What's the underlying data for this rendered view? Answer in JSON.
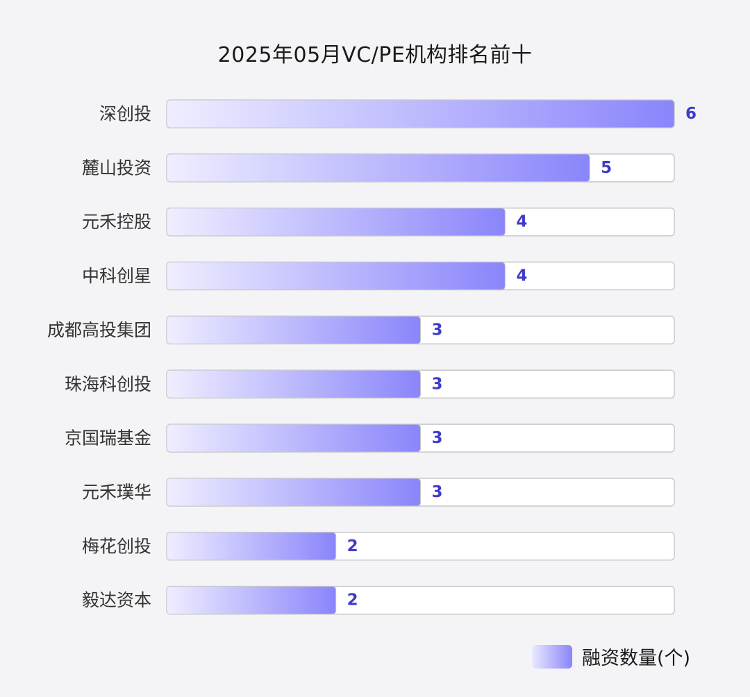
{
  "chart_data": {
    "type": "bar",
    "orientation": "horizontal",
    "title": "2025年05月VC/PE机构排名前十",
    "categories": [
      "深创投",
      "麓山投资",
      "元禾控股",
      "中科创星",
      "成都高投集团",
      "珠海科创投",
      "京国瑞基金",
      "元禾璞华",
      "梅花创投",
      "毅达资本"
    ],
    "series": [
      {
        "name": "融资数量(个)",
        "values": [
          6,
          5,
          4,
          4,
          3,
          3,
          3,
          3,
          2,
          2
        ]
      }
    ],
    "xlim": [
      0,
      6
    ],
    "grid": false,
    "legend": "bottom-right"
  },
  "colors": {
    "bar_start": "#efeeff",
    "bar_end": "#8a85fb",
    "label": "#3f3bc9",
    "track_border": "#c8c8cc",
    "category_text": "#333333"
  }
}
